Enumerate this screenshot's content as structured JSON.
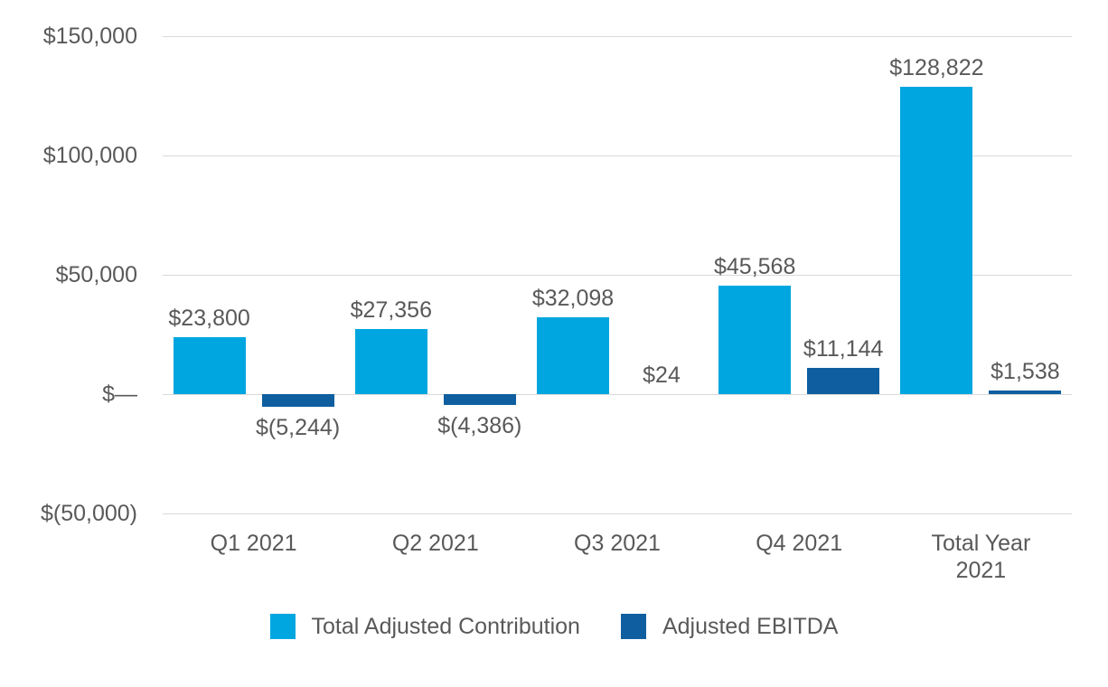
{
  "chart_data": {
    "type": "bar",
    "title": "",
    "xlabel": "",
    "ylabel": "",
    "categories": [
      "Q1 2021",
      "Q2 2021",
      "Q3 2021",
      "Q4 2021",
      "Total Year 2021"
    ],
    "series": [
      {
        "name": "Total Adjusted Contribution",
        "color": "#00A6DF",
        "values": [
          23800,
          27356,
          32098,
          45568,
          128822
        ],
        "labels": [
          "$23,800",
          "$27,356",
          "$32,098",
          "$45,568",
          "$128,822"
        ]
      },
      {
        "name": "Adjusted EBITDA",
        "color": "#0F5FA0",
        "values": [
          -5244,
          -4386,
          24,
          11144,
          1538
        ],
        "labels": [
          "$(5,244)",
          "$(4,386)",
          "$24",
          "$11,144",
          "$1,538"
        ]
      }
    ],
    "y_axis": {
      "range": [
        -50000,
        150000
      ],
      "ticks": [
        150000,
        100000,
        50000,
        0,
        -50000
      ],
      "tick_labels": [
        "$150,000",
        "$100,000",
        "$50,000",
        "$—",
        "$(50,000)"
      ]
    },
    "grid": true,
    "legend_position": "bottom",
    "colors": {
      "text": "#595959",
      "gridline": "#D9D9D9",
      "background": "#FFFFFF"
    }
  }
}
